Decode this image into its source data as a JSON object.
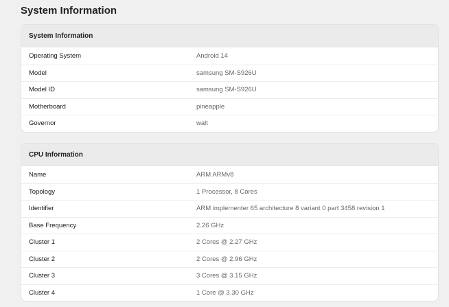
{
  "page_title": "System Information",
  "sections": [
    {
      "title": "System Information",
      "rows": [
        {
          "label": "Operating System",
          "value": "Android 14"
        },
        {
          "label": "Model",
          "value": "samsung SM-S926U"
        },
        {
          "label": "Model ID",
          "value": "samsung SM-S926U"
        },
        {
          "label": "Motherboard",
          "value": "pineapple"
        },
        {
          "label": "Governor",
          "value": "walt"
        }
      ]
    },
    {
      "title": "CPU Information",
      "rows": [
        {
          "label": "Name",
          "value": "ARM ARMv8"
        },
        {
          "label": "Topology",
          "value": "1 Processor, 8 Cores"
        },
        {
          "label": "Identifier",
          "value": "ARM implementer 65 architecture 8 variant 0 part 3458 revision 1"
        },
        {
          "label": "Base Frequency",
          "value": "2.26 GHz"
        },
        {
          "label": "Cluster 1",
          "value": "2 Cores @ 2.27 GHz"
        },
        {
          "label": "Cluster 2",
          "value": "2 Cores @ 2.96 GHz"
        },
        {
          "label": "Cluster 3",
          "value": "3 Cores @ 3.15 GHz"
        },
        {
          "label": "Cluster 4",
          "value": "1 Core @ 3.30 GHz"
        }
      ]
    }
  ]
}
